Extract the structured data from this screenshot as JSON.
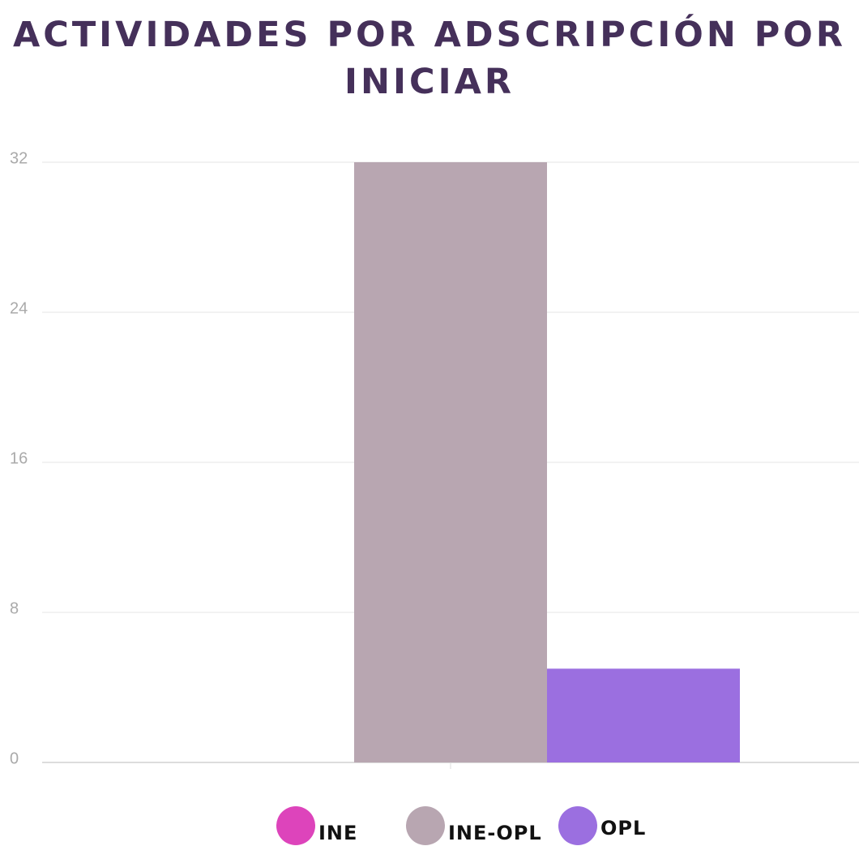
{
  "chart_data": {
    "type": "bar",
    "title": "ACTIVIDADES POR ADSCRIPCIÓN POR INICIAR",
    "categories": [
      null
    ],
    "series": [
      {
        "name": "INE",
        "color": "#dd44bb",
        "values": [
          0
        ]
      },
      {
        "name": "INE-OPL",
        "color": "#b8a6b1",
        "values": [
          32
        ]
      },
      {
        "name": "OPL",
        "color": "#9b6fe0",
        "values": [
          5
        ]
      }
    ],
    "ylim": [
      0,
      32
    ],
    "yticks": [
      0,
      8,
      16,
      24,
      32
    ],
    "grid": true,
    "legend": "bottom"
  }
}
